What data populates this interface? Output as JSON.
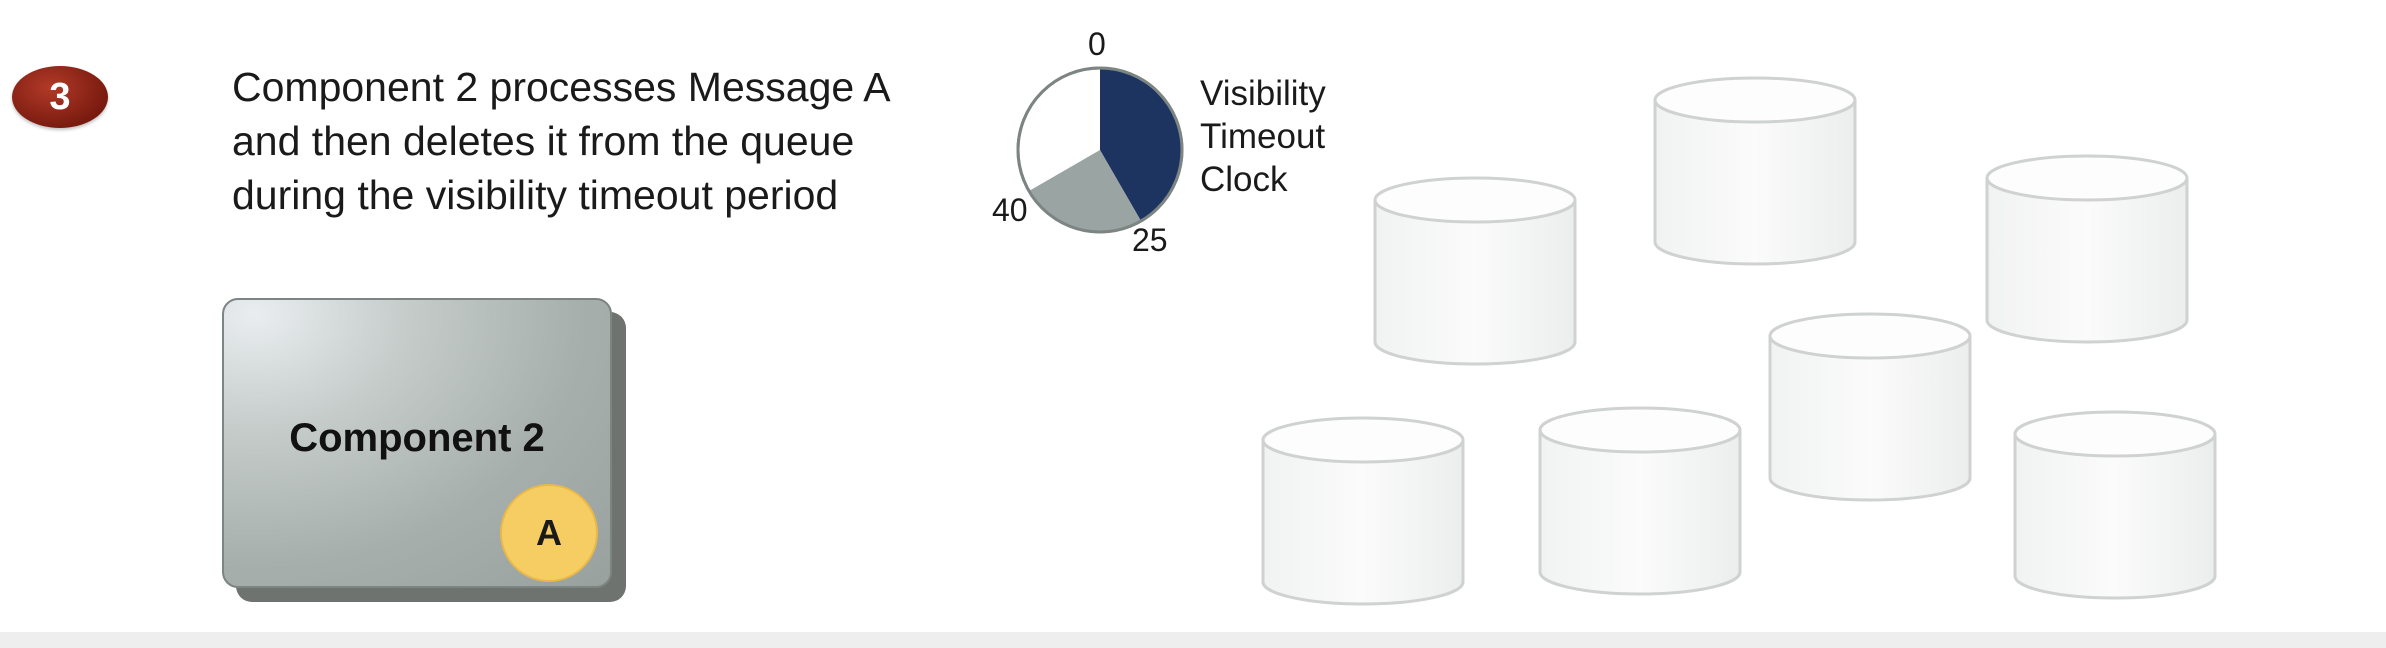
{
  "step": {
    "number": "3",
    "color": "#7a1b10"
  },
  "description": {
    "lines": [
      "Component 2 processes Message A",
      "and then deletes it from the queue",
      "during the visibility timeout period"
    ]
  },
  "clock": {
    "label_lines": [
      "Visibility",
      "Timeout",
      "Clock"
    ],
    "ticks": {
      "top": "0",
      "left": "40",
      "right": "25"
    },
    "segments": [
      {
        "name": "elapsed",
        "from": 0,
        "to": 25,
        "color": "#1d3461"
      },
      {
        "name": "remaining",
        "from": 25,
        "to": 40,
        "color": "#9aa4a2"
      }
    ]
  },
  "component": {
    "name": "Component 2",
    "message": "A",
    "token_color": "#f6cd62"
  },
  "queue": {
    "slot_count": 7
  }
}
